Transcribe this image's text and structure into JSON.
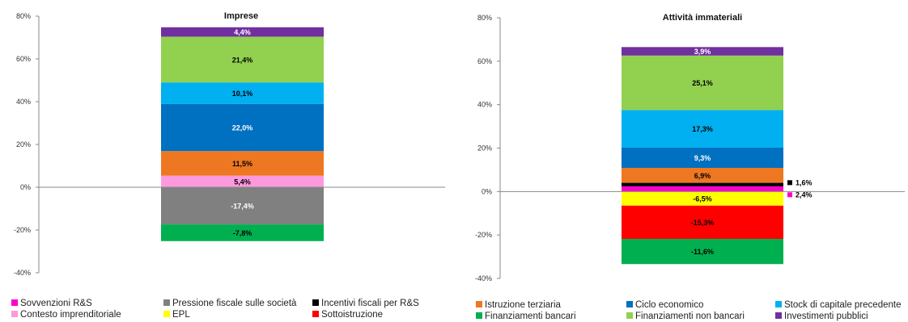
{
  "chart_data": [
    {
      "type": "bar",
      "stacked": true,
      "title": "Imprese",
      "ylim": [
        -40,
        80
      ],
      "yticks": [
        "-40%",
        "-20%",
        "0%",
        "20%",
        "40%",
        "60%",
        "80%"
      ],
      "grid": false,
      "series": [
        {
          "name": "Contesto imprenditoriale",
          "value": 5.4,
          "label": "5,4%",
          "color": "#ff99dd",
          "label_color": "#000000"
        },
        {
          "name": "Istruzione terziaria",
          "value": 11.5,
          "label": "11,5%",
          "color": "#ee7722",
          "label_color": "#000000"
        },
        {
          "name": "Ciclo economico",
          "value": 22.0,
          "label": "22,0%",
          "color": "#0070c0",
          "label_color": "#ffffff"
        },
        {
          "name": "Stock di capitale precedente",
          "value": 10.1,
          "label": "10,1%",
          "color": "#00b0f0",
          "label_color": "#000000"
        },
        {
          "name": "Finanziamenti non bancari",
          "value": 21.4,
          "label": "21,4%",
          "color": "#92d050",
          "label_color": "#000000"
        },
        {
          "name": "Investimenti pubblici",
          "value": 4.4,
          "label": "4,4%",
          "color": "#7030a0",
          "label_color": "#ffffff"
        },
        {
          "name": "Pressione fiscale sulle società",
          "value": -17.4,
          "label": "-17,4%",
          "color": "#808080",
          "label_color": "#ffffff"
        },
        {
          "name": "Finanziamenti bancari",
          "value": -7.8,
          "label": "-7,8%",
          "color": "#00b050",
          "label_color": "#000000"
        }
      ]
    },
    {
      "type": "bar",
      "stacked": true,
      "title": "Attività immateriali",
      "ylim": [
        -40,
        80
      ],
      "yticks": [
        "-40%",
        "-20%",
        "0%",
        "20%",
        "40%",
        "60%",
        "80%"
      ],
      "grid": false,
      "series": [
        {
          "name": "Sovvenzioni R&S",
          "value": 2.4,
          "label": "2,4%",
          "color": "#ff00cc",
          "label_color": "#000000",
          "outside": true
        },
        {
          "name": "Incentivi fiscali per R&S",
          "value": 1.6,
          "label": "1,6%",
          "color": "#000000",
          "label_color": "#000000",
          "outside": true
        },
        {
          "name": "Istruzione terziaria",
          "value": 6.9,
          "label": "6,9%",
          "color": "#ee7722",
          "label_color": "#000000"
        },
        {
          "name": "Ciclo economico",
          "value": 9.3,
          "label": "9,3%",
          "color": "#0070c0",
          "label_color": "#ffffff"
        },
        {
          "name": "Stock di capitale precedente",
          "value": 17.3,
          "label": "17,3%",
          "color": "#00b0f0",
          "label_color": "#000000"
        },
        {
          "name": "Finanziamenti non bancari",
          "value": 25.1,
          "label": "25,1%",
          "color": "#92d050",
          "label_color": "#000000"
        },
        {
          "name": "Investimenti pubblici",
          "value": 3.9,
          "label": "3,9%",
          "color": "#7030a0",
          "label_color": "#ffffff"
        },
        {
          "name": "EPL",
          "value": -6.5,
          "label": "-6,5%",
          "color": "#ffff00",
          "label_color": "#000000"
        },
        {
          "name": "Sottoistruzione",
          "value": -15.3,
          "label": "-15,3%",
          "color": "#ff0000",
          "label_color": "#000000"
        },
        {
          "name": "Finanziamenti bancari",
          "value": -11.6,
          "label": "-11,6%",
          "color": "#00b050",
          "label_color": "#000000"
        }
      ]
    }
  ],
  "legend": [
    {
      "name": "Sovvenzioni R&S",
      "color": "#ff00cc"
    },
    {
      "name": "Pressione fiscale sulle società",
      "color": "#808080"
    },
    {
      "name": "Incentivi fiscali per R&S",
      "color": "#000000"
    },
    {
      "name": "Istruzione terziaria",
      "color": "#ee7722"
    },
    {
      "name": "Ciclo economico",
      "color": "#0070c0"
    },
    {
      "name": "Stock di capitale precedente",
      "color": "#00b0f0"
    },
    {
      "name": "Contesto imprenditoriale",
      "color": "#ff99dd"
    },
    {
      "name": "EPL",
      "color": "#ffff00"
    },
    {
      "name": "Sottoistruzione",
      "color": "#ff0000"
    },
    {
      "name": "Finanziamenti bancari",
      "color": "#00b050"
    },
    {
      "name": "Finanziamenti non bancari",
      "color": "#92d050"
    },
    {
      "name": "Investimenti pubblici",
      "color": "#7030a0"
    }
  ]
}
